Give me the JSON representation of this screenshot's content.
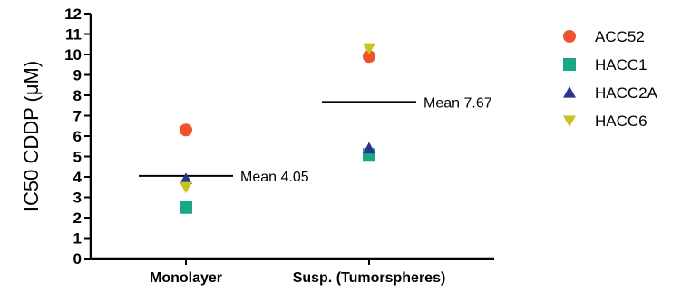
{
  "chart_data": {
    "type": "scatter",
    "ylabel": "IC50 CDDP (μM)",
    "xlabel": "",
    "title": "",
    "categories": [
      "Monolayer",
      "Susp. (Tumorspheres)"
    ],
    "ylim": [
      0,
      12
    ],
    "yticks": [
      0,
      1,
      2,
      3,
      4,
      5,
      6,
      7,
      8,
      9,
      10,
      11,
      12
    ],
    "grid": false,
    "legend_position": "right",
    "series": [
      {
        "name": "ACC52",
        "marker": "circle",
        "color": "#f0532b",
        "values": [
          6.3,
          9.9
        ]
      },
      {
        "name": "HACC1",
        "marker": "square",
        "color": "#19a883",
        "values": [
          2.5,
          5.1
        ]
      },
      {
        "name": "HACC2A",
        "marker": "triangle-up",
        "color": "#2a3590",
        "values": [
          3.9,
          5.4
        ]
      },
      {
        "name": "HACC6",
        "marker": "triangle-down",
        "color": "#c9c41d",
        "values": [
          3.5,
          10.3
        ]
      }
    ],
    "means": [
      {
        "category": "Monolayer",
        "value": 4.05,
        "label": "Mean 4.05"
      },
      {
        "category": "Susp. (Tumorspheres)",
        "value": 7.67,
        "label": "Mean 7.67"
      }
    ]
  }
}
